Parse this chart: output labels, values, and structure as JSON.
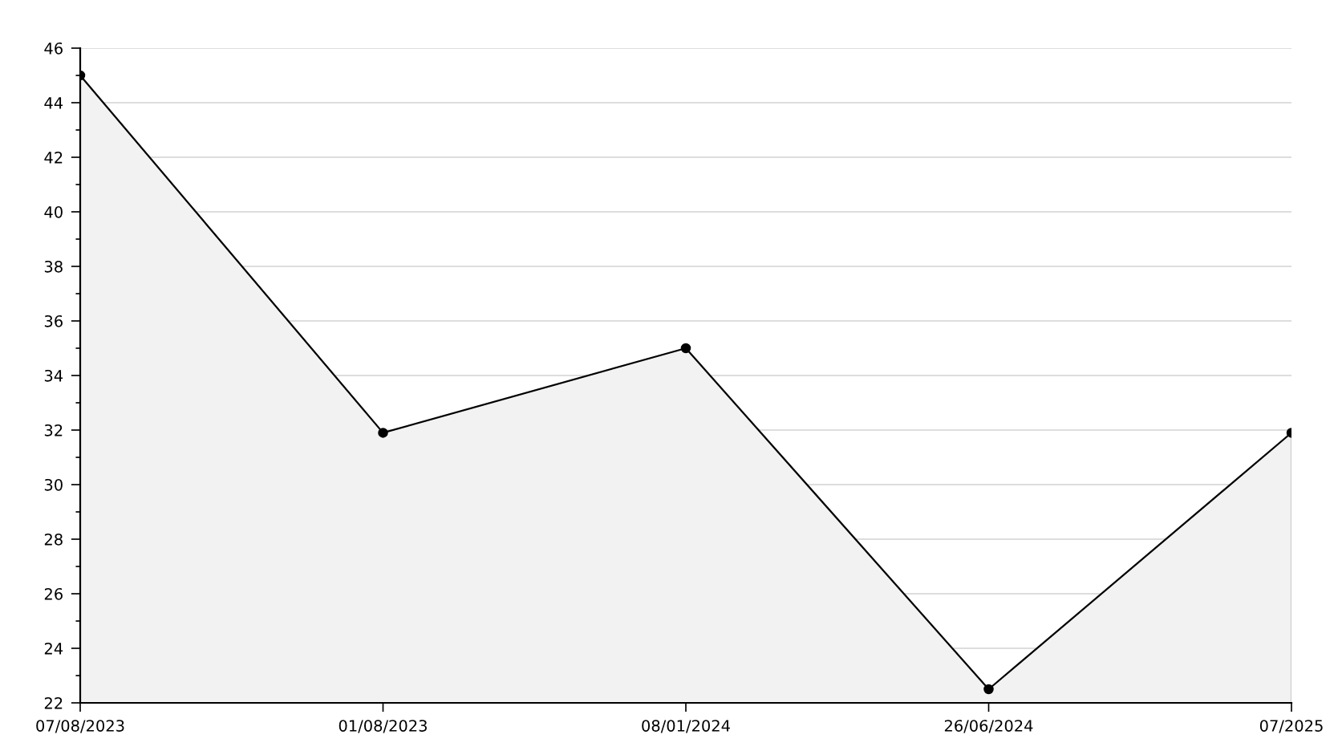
{
  "chart_data": {
    "type": "area",
    "categories": [
      "07/08/2023",
      "01/08/2023",
      "08/01/2024",
      "26/06/2024",
      "07/2025"
    ],
    "series": [
      {
        "color": "#000000",
        "values": [
          45,
          31.9,
          35,
          22.5,
          31.9
        ]
      }
    ],
    "ylim": [
      22,
      46
    ],
    "yticks": [
      22,
      {
        "value": 23,
        "label": null
      },
      24,
      {
        "value": 25,
        "label": null
      },
      26,
      {
        "value": 27,
        "label": null
      },
      28,
      {
        "value": 29,
        "label": null
      },
      30,
      {
        "value": 31,
        "label": null
      },
      32,
      {
        "value": 33,
        "label": null
      },
      34,
      {
        "value": 35,
        "label": null
      },
      36,
      {
        "value": 37,
        "label": null
      },
      38,
      {
        "value": 39,
        "label": null
      },
      40,
      {
        "value": 41,
        "label": null
      },
      42,
      {
        "value": 43,
        "label": null
      },
      44,
      {
        "value": 45,
        "label": null
      },
      46
    ],
    "grid": "y",
    "marker": "circle",
    "line_style": "solid"
  }
}
